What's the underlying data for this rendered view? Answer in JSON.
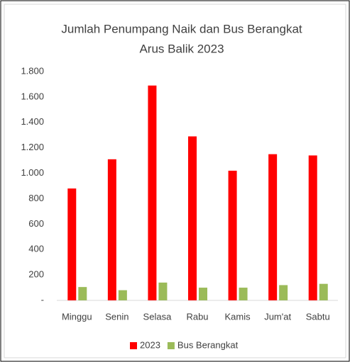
{
  "chart_data": {
    "type": "bar",
    "title": [
      "Jumlah Penumpang Naik dan Bus Berangkat",
      "Arus Balik 2023"
    ],
    "categories": [
      "Minggu",
      "Senin",
      "Selasa",
      "Rabu",
      "Kamis",
      "Jum'at",
      "Sabtu"
    ],
    "series": [
      {
        "name": "2023",
        "color": "#ff0000",
        "values": [
          880,
          1110,
          1690,
          1290,
          1020,
          1150,
          1140
        ]
      },
      {
        "name": "Bus Berangkat",
        "color": "#9bbb59",
        "values": [
          105,
          80,
          140,
          100,
          100,
          120,
          130
        ]
      }
    ],
    "ylim": [
      0,
      1800
    ],
    "yticks": [
      {
        "value": 0,
        "label": "-"
      },
      200,
      400,
      600,
      800,
      {
        "value": 1000,
        "label": "1.000"
      },
      {
        "value": 1200,
        "label": "1.200"
      },
      {
        "value": 1400,
        "label": "1.400"
      },
      {
        "value": 1600,
        "label": "1.600"
      },
      {
        "value": 1800,
        "label": "1.800"
      }
    ],
    "grid": false,
    "legend": "bottom"
  }
}
